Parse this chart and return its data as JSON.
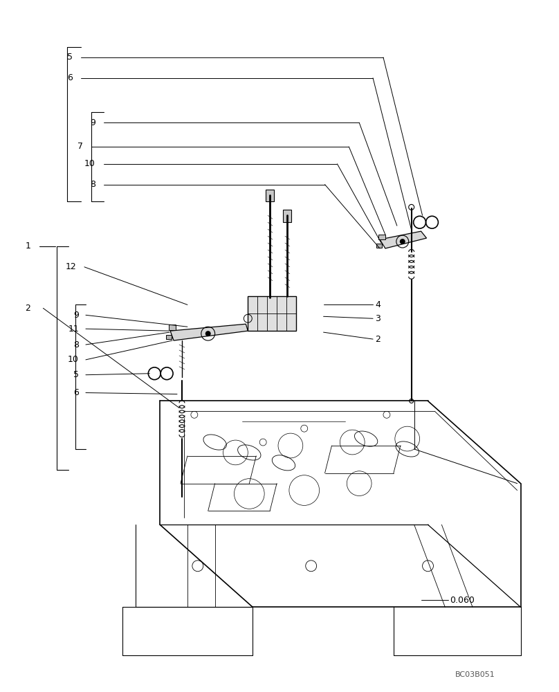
{
  "bg_color": "#ffffff",
  "line_color": "#000000",
  "text_color": "#000000",
  "fig_width": 8.08,
  "fig_height": 10.0,
  "dpi": 100,
  "watermark": "BC03B051",
  "part_number": "0.060"
}
